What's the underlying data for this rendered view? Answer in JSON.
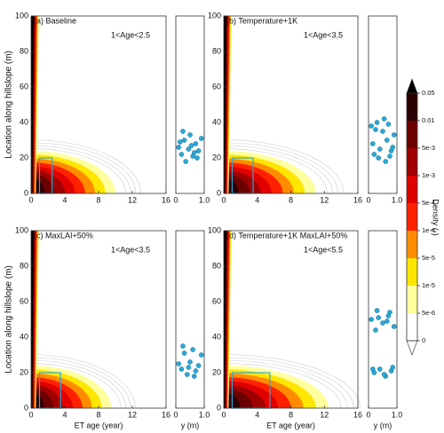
{
  "chart_data": [
    {
      "type": "contour",
      "title": "(a) Baseline",
      "annotation": "1<Age<2.5",
      "ylabel": "Location along hillslope (m)",
      "xlim": [
        0,
        16
      ],
      "xticks": [
        0,
        4,
        8,
        12,
        16
      ],
      "ylim": [
        0,
        100
      ],
      "yticks": [
        0,
        20,
        40,
        60,
        80,
        100
      ],
      "age_range": [
        1,
        2.5
      ],
      "scatter": {
        "xlim": [
          0,
          1
        ],
        "xticks": [
          0,
          {
            "value": 1,
            "label": "1.0"
          }
        ],
        "color": "#29a8d8",
        "x": [
          0.1,
          0.2,
          0.3,
          0.35,
          0.45,
          0.5,
          0.6,
          0.7,
          0.8,
          0.9,
          0.15,
          0.55,
          0.75,
          0.25,
          0.65
        ],
        "y": [
          26,
          22,
          30,
          18,
          25,
          33,
          21,
          28,
          24,
          31,
          29,
          27,
          20,
          35,
          23
        ]
      }
    },
    {
      "type": "contour",
      "title": "(b) Temperature+1K",
      "annotation": "1<Age<3.5",
      "xlim": [
        0,
        16
      ],
      "xticks": [
        0,
        4,
        8,
        12,
        16
      ],
      "ylim": [
        0,
        100
      ],
      "yticks": [
        0,
        20,
        40,
        60,
        80,
        100
      ],
      "age_range": [
        1,
        3.5
      ],
      "scatter": {
        "xlim": [
          0,
          1
        ],
        "xticks": [
          0,
          {
            "value": 1,
            "label": "1.0"
          }
        ],
        "color": "#29a8d8",
        "x": [
          0.1,
          0.2,
          0.3,
          0.4,
          0.5,
          0.6,
          0.7,
          0.8,
          0.9,
          0.15,
          0.35,
          0.55,
          0.75,
          0.25,
          0.65,
          0.85
        ],
        "y": [
          38,
          22,
          40,
          25,
          35,
          18,
          39,
          24,
          33,
          28,
          20,
          42,
          21,
          36,
          30,
          26
        ]
      }
    },
    {
      "type": "contour",
      "title": "(c) MaxLAI+50%",
      "annotation": "1<Age<3.5",
      "ylabel": "Location along hillslope (m)",
      "xlabel": "ET age (year)",
      "xlim": [
        0,
        16
      ],
      "xticks": [
        0,
        4,
        8,
        12,
        16
      ],
      "ylim": [
        0,
        100
      ],
      "yticks": [
        0,
        20,
        40,
        60,
        80,
        100
      ],
      "age_range": [
        1,
        3.5
      ],
      "scatter": {
        "xlabel": "y (m)",
        "xlim": [
          0,
          1
        ],
        "xticks": [
          0,
          {
            "value": 1,
            "label": "1.0"
          }
        ],
        "color": "#29a8d8",
        "x": [
          0.1,
          0.2,
          0.3,
          0.4,
          0.5,
          0.6,
          0.7,
          0.8,
          0.9,
          0.25,
          0.45,
          0.65
        ],
        "y": [
          25,
          22,
          31,
          19,
          26,
          33,
          21,
          24,
          30,
          35,
          23,
          18
        ]
      }
    },
    {
      "type": "contour",
      "title": "(d) Temperature+1K MaxLAI+50%",
      "annotation": "1<Age<5.5",
      "xlabel": "ET age (year)",
      "xlim": [
        0,
        16
      ],
      "xticks": [
        0,
        4,
        8,
        12,
        16
      ],
      "ylim": [
        0,
        100
      ],
      "yticks": [
        0,
        20,
        40,
        60,
        80,
        100
      ],
      "age_range": [
        1,
        5.5
      ],
      "scatter": {
        "xlabel": "y (m)",
        "xlim": [
          0,
          1
        ],
        "xticks": [
          0,
          {
            "value": 1,
            "label": "1.0"
          }
        ],
        "color": "#29a8d8",
        "x": [
          0.1,
          0.2,
          0.3,
          0.4,
          0.5,
          0.6,
          0.7,
          0.8,
          0.9,
          0.15,
          0.35,
          0.55,
          0.75,
          0.85,
          0.25,
          0.65
        ],
        "y": [
          50,
          20,
          55,
          22,
          48,
          18,
          52,
          21,
          46,
          22,
          51,
          19,
          54,
          23,
          44,
          49
        ]
      }
    }
  ],
  "colorbar": {
    "label": "Density (-)",
    "ticks": [
      0.05,
      0.01,
      {
        "value": 0.005,
        "label": "5e-3"
      },
      {
        "value": 0.001,
        "label": "1e-3"
      },
      {
        "value": 0.0005,
        "label": "5e-4"
      },
      {
        "value": 0.0001,
        "label": "1e-4"
      },
      {
        "value": 5e-05,
        "label": "5e-5"
      },
      {
        "value": 1e-05,
        "label": "1e-5"
      },
      {
        "value": 5e-06,
        "label": "5e-6"
      },
      0
    ],
    "colors": [
      "#2b0000",
      "#6b0000",
      "#a00000",
      "#e00000",
      "#ff2000",
      "#ff8c00",
      "#ffe600",
      "#ffff9e",
      "#ffffff"
    ],
    "extend_colors": [
      "#000000",
      "#ffffff"
    ],
    "box_color": "#29a8d8"
  }
}
